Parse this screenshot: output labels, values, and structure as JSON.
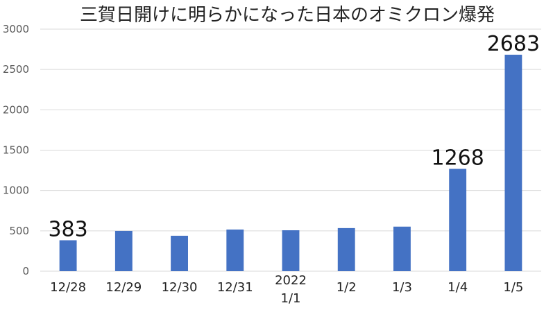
{
  "chart_data": {
    "type": "bar",
    "title": "三賀日開けに明らかになった日本のオミクロン爆発",
    "xlabel": "",
    "ylabel": "",
    "categories": [
      "12/28",
      "12/29",
      "12/30",
      "12/31",
      "2022\n1/1",
      "1/2",
      "1/3",
      "1/4",
      "1/5"
    ],
    "values": [
      383,
      499,
      439,
      516,
      507,
      534,
      552,
      1268,
      2683
    ],
    "data_labels": {
      "0": "383",
      "7": "1268",
      "8": "2683"
    },
    "ylim": [
      0,
      3000
    ],
    "yticks": [
      0,
      500,
      1000,
      1500,
      2000,
      2500,
      3000
    ],
    "grid": true,
    "legend": "none",
    "bar_color": "#4472c4",
    "grid_color": "#d9d9d9"
  }
}
